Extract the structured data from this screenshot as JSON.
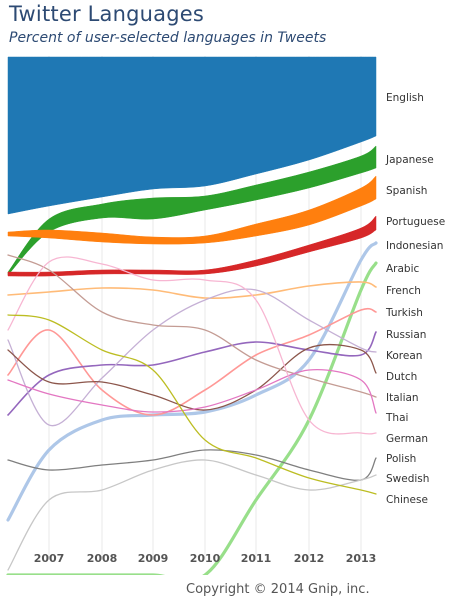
{
  "header": {
    "title": "Twitter Languages",
    "subtitle": "Percent of user-selected languages in Tweets"
  },
  "footer": {
    "copyright": "Copyright © 2014 Gnip, inc."
  },
  "chart_data": {
    "type": "area",
    "title": "Twitter Languages",
    "subtitle": "Percent of user-selected languages in Tweets",
    "x_ticks": [
      "2007",
      "2008",
      "2009",
      "2010",
      "2011",
      "2012",
      "2013"
    ],
    "grid": true,
    "legend_placement": "right",
    "series": [
      {
        "name": "English",
        "color": "#1f78b4",
        "shape": "band"
      },
      {
        "name": "Japanese",
        "color": "#2ca02c",
        "shape": "band"
      },
      {
        "name": "Spanish",
        "color": "#ff7f0e",
        "shape": "band"
      },
      {
        "name": "Portuguese",
        "color": "#d62728",
        "shape": "band"
      },
      {
        "name": "Indonesian",
        "color": "#aec7e8",
        "shape": "line"
      },
      {
        "name": "Arabic",
        "color": "#98df8a",
        "shape": "line"
      },
      {
        "name": "French",
        "color": "#ffbb78",
        "shape": "line"
      },
      {
        "name": "Turkish",
        "color": "#ff9896",
        "shape": "line"
      },
      {
        "name": "Russian",
        "color": "#9467bd",
        "shape": "line"
      },
      {
        "name": "Korean",
        "color": "#c5b0d5",
        "shape": "line"
      },
      {
        "name": "Dutch",
        "color": "#8c564b",
        "shape": "line"
      },
      {
        "name": "Italian",
        "color": "#c49c94",
        "shape": "line"
      },
      {
        "name": "Thai",
        "color": "#e377c2",
        "shape": "line"
      },
      {
        "name": "German",
        "color": "#f7b6d2",
        "shape": "line"
      },
      {
        "name": "Polish",
        "color": "#7f7f7f",
        "shape": "line"
      },
      {
        "name": "Swedish",
        "color": "#c7c7c7",
        "shape": "line"
      },
      {
        "name": "Chinese",
        "color": "#bcbd22",
        "shape": "line"
      }
    ]
  }
}
